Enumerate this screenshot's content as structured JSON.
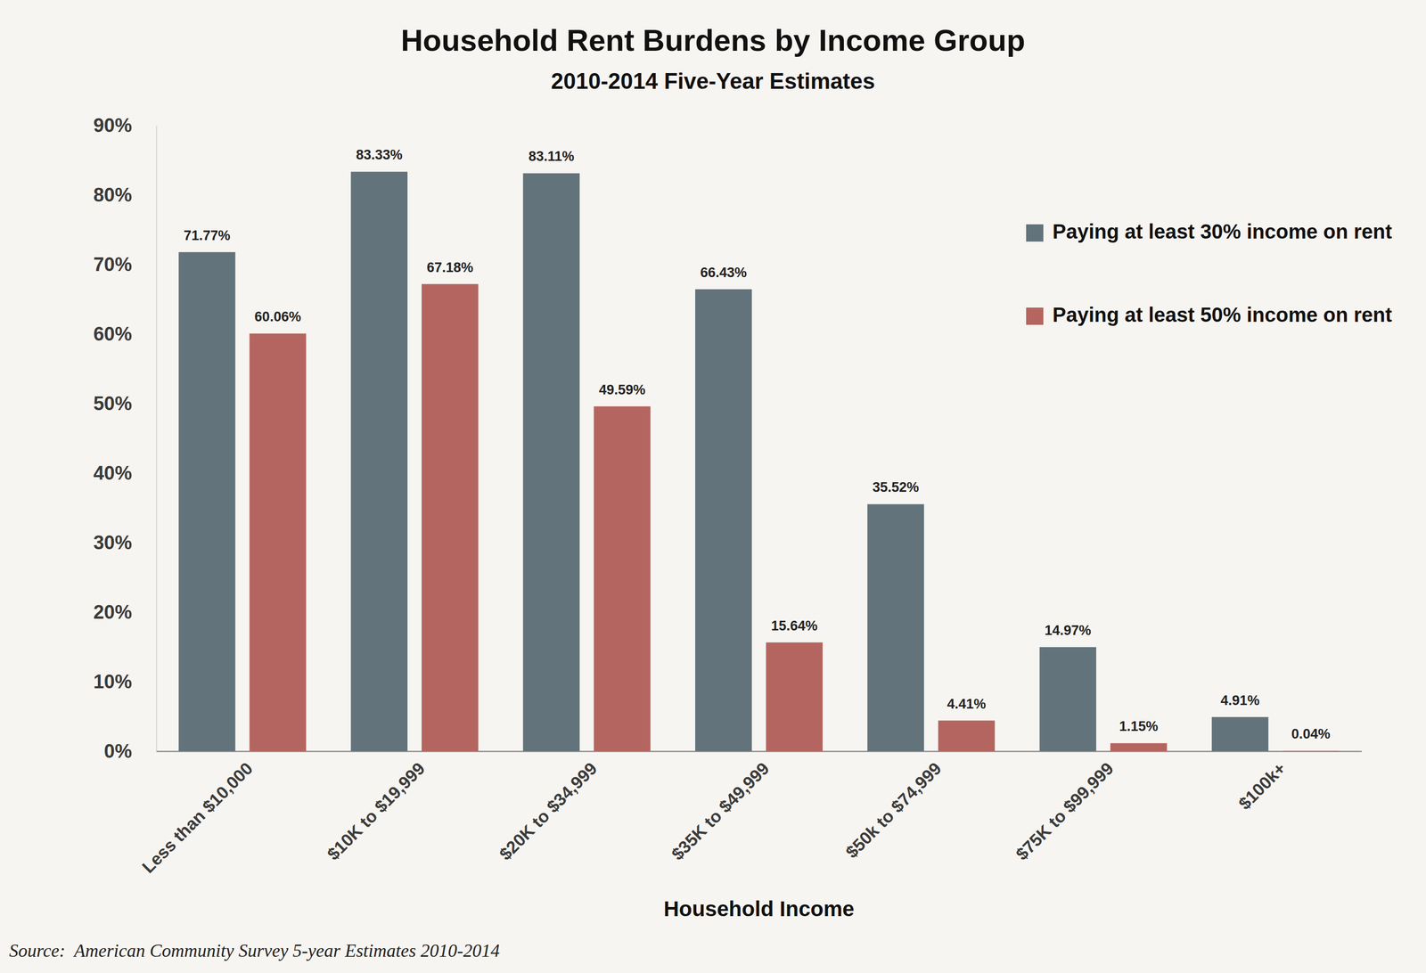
{
  "chart_data": {
    "type": "bar",
    "title": "Household Rent Burdens by Income Group",
    "subtitle": "2010-2014 Five-Year Estimates",
    "xlabel": "Household Income",
    "annotations": [
      "Source:  American Community Survey 5-year Estimates 2010-2014"
    ],
    "categories": [
      "Less than $10,000",
      "$10K to $19,999",
      "$20K to $34,999",
      "$35K to $49,999",
      "$50k to $74,999",
      "$75K to $99,999",
      "$100k+"
    ],
    "series": [
      {
        "name": "Paying at least 30% income on rent",
        "color": "#63737b",
        "values": [
          71.77,
          83.33,
          83.11,
          66.43,
          35.52,
          14.97,
          4.91
        ],
        "value_labels": [
          "71.77%",
          "83.33%",
          "83.11%",
          "66.43%",
          "35.52%",
          "14.97%",
          "4.91%"
        ]
      },
      {
        "name": "Paying at least 50% income on rent",
        "color": "#b5655f",
        "values": [
          60.06,
          67.18,
          49.59,
          15.64,
          4.41,
          1.15,
          0.04
        ],
        "value_labels": [
          "60.06%",
          "67.18%",
          "49.59%",
          "15.64%",
          "4.41%",
          "1.15%",
          "0.04%"
        ]
      }
    ],
    "ylim": [
      0,
      90
    ],
    "yticks": [
      {
        "value": 0,
        "label": "0%"
      },
      {
        "value": 10,
        "label": "10%"
      },
      {
        "value": 20,
        "label": "20%"
      },
      {
        "value": 30,
        "label": "30%"
      },
      {
        "value": 40,
        "label": "40%"
      },
      {
        "value": 50,
        "label": "50%"
      },
      {
        "value": 60,
        "label": "60%"
      },
      {
        "value": 70,
        "label": "70%"
      },
      {
        "value": 80,
        "label": "80%"
      },
      {
        "value": 90,
        "label": "90%"
      }
    ],
    "grid": false,
    "legend": "upper right",
    "data_labels": true
  }
}
